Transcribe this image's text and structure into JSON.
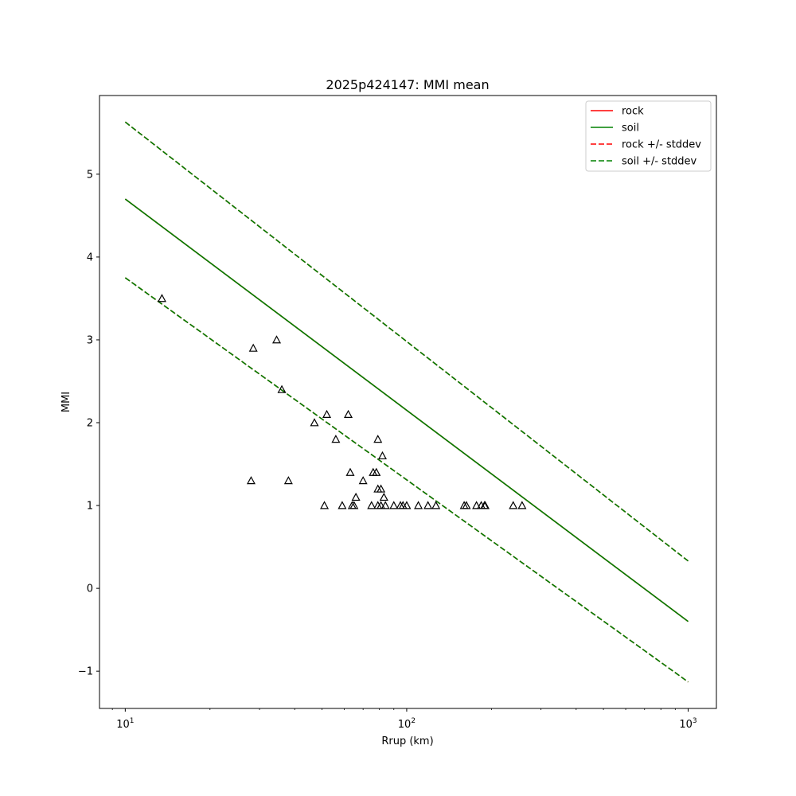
{
  "chart_data": {
    "type": "scatter",
    "title": "2025p424147: MMI mean",
    "xlabel": "Rrup (km)",
    "ylabel": "MMI",
    "xscale": "log",
    "xlim": [
      8.1,
      1260
    ],
    "ylim": [
      -1.45,
      5.95
    ],
    "grid": false,
    "legend_placement": "top-right",
    "x_ticks": [
      {
        "value": 10,
        "base": "10",
        "exp": "1"
      },
      {
        "value": 100,
        "base": "10",
        "exp": "2"
      },
      {
        "value": 1000,
        "base": "10",
        "exp": "3"
      }
    ],
    "y_ticks": [
      {
        "value": -1,
        "label": "−1"
      },
      {
        "value": 0,
        "label": "0"
      },
      {
        "value": 1,
        "label": "1"
      },
      {
        "value": 2,
        "label": "2"
      },
      {
        "value": 3,
        "label": "3"
      },
      {
        "value": 4,
        "label": "4"
      },
      {
        "value": 5,
        "label": "5"
      }
    ],
    "series": [
      {
        "name": "rock",
        "style": "solid",
        "color": "#ff0000",
        "x": [
          10,
          1000
        ],
        "y": [
          4.7,
          -0.4
        ]
      },
      {
        "name": "soil",
        "style": "solid",
        "color": "#008000",
        "x": [
          10,
          1000
        ],
        "y": [
          4.7,
          -0.4
        ]
      },
      {
        "name": "rock +/- stddev",
        "style": "dashed",
        "color": "#ff0000",
        "x": [
          10,
          1000
        ],
        "y": [
          5.63,
          0.33
        ],
        "y2": [
          3.75,
          -1.13
        ]
      },
      {
        "name": "soil +/- stddev",
        "style": "dashed",
        "color": "#008000",
        "x": [
          10,
          1000
        ],
        "y": [
          5.63,
          0.33
        ],
        "y2": [
          3.75,
          -1.13
        ]
      }
    ],
    "observations": {
      "marker": "triangle",
      "color": "#000000",
      "points": [
        [
          13.5,
          3.5
        ],
        [
          28.5,
          2.9
        ],
        [
          34.5,
          3.0
        ],
        [
          36,
          2.4
        ],
        [
          28,
          1.3
        ],
        [
          38,
          1.3
        ],
        [
          47,
          2.0
        ],
        [
          52,
          2.1
        ],
        [
          62,
          2.1
        ],
        [
          56,
          1.8
        ],
        [
          51,
          1.0
        ],
        [
          59,
          1.0
        ],
        [
          63,
          1.4
        ],
        [
          64,
          1.0
        ],
        [
          65,
          1.0
        ],
        [
          66,
          1.1
        ],
        [
          70,
          1.3
        ],
        [
          75,
          1.0
        ],
        [
          76,
          1.4
        ],
        [
          78,
          1.4
        ],
        [
          79,
          1.8
        ],
        [
          79,
          1.2
        ],
        [
          79,
          1.0
        ],
        [
          81,
          1.2
        ],
        [
          82,
          1.6
        ],
        [
          81,
          1.0
        ],
        [
          83,
          1.1
        ],
        [
          84,
          1.0
        ],
        [
          90,
          1.0
        ],
        [
          95,
          1.0
        ],
        [
          97,
          1.0
        ],
        [
          100,
          1.0
        ],
        [
          110,
          1.0
        ],
        [
          119,
          1.0
        ],
        [
          127,
          1.0
        ],
        [
          160,
          1.0
        ],
        [
          163,
          1.0
        ],
        [
          177,
          1.0
        ],
        [
          184,
          1.0
        ],
        [
          189,
          1.0
        ],
        [
          190,
          1.0
        ],
        [
          239,
          1.0
        ],
        [
          257,
          1.0
        ]
      ]
    }
  }
}
